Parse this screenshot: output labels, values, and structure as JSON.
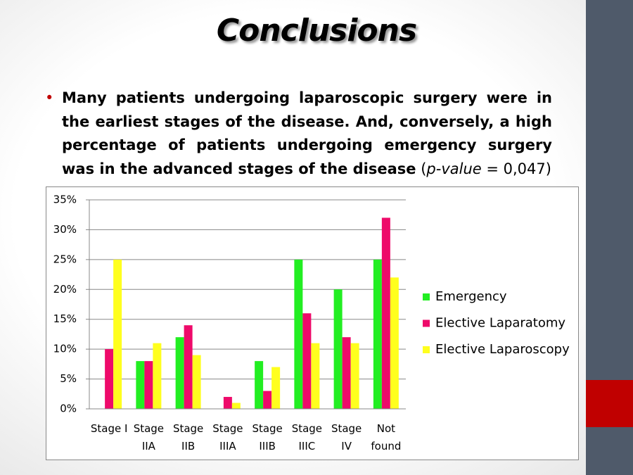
{
  "slide": {
    "title": "Conclusions",
    "bullet": [
      "Many patients undergoing laparoscopic surgery were in the earliest stages of the disease. And, conversely, a high percentage of patients undergoing emergency surgery was in the advanced stages of the disease",
      " (",
      "p-value",
      " = 0,047)"
    ]
  },
  "chart_data": {
    "type": "bar",
    "categories": [
      "Stage I",
      "Stage IIA",
      "Stage IIB",
      "Stage IIIA",
      "Stage IIIB",
      "Stage IIIC",
      "Stage IV",
      "Not found"
    ],
    "series": [
      {
        "name": "Emergency",
        "color": "#22ee22",
        "values": [
          0,
          8,
          12,
          0,
          8,
          25,
          20,
          25
        ]
      },
      {
        "name": "Elective Laparatomy",
        "color": "#ee0a6a",
        "values": [
          10,
          8,
          14,
          2,
          3,
          16,
          12,
          32
        ]
      },
      {
        "name": "Elective Laparoscopy",
        "color": "#ffff1e",
        "values": [
          25,
          11,
          9,
          1,
          7,
          11,
          11,
          22
        ]
      }
    ],
    "ylim": [
      0,
      35
    ],
    "yticks": [
      {
        "value": 0,
        "label": "0%"
      },
      {
        "value": 5,
        "label": "5%"
      },
      {
        "value": 10,
        "label": "10%"
      },
      {
        "value": 15,
        "label": "15%"
      },
      {
        "value": 20,
        "label": "20%"
      },
      {
        "value": 25,
        "label": "25%"
      },
      {
        "value": 30,
        "label": "30%"
      },
      {
        "value": 35,
        "label": "35%"
      }
    ],
    "grid": true,
    "legend": "right"
  }
}
